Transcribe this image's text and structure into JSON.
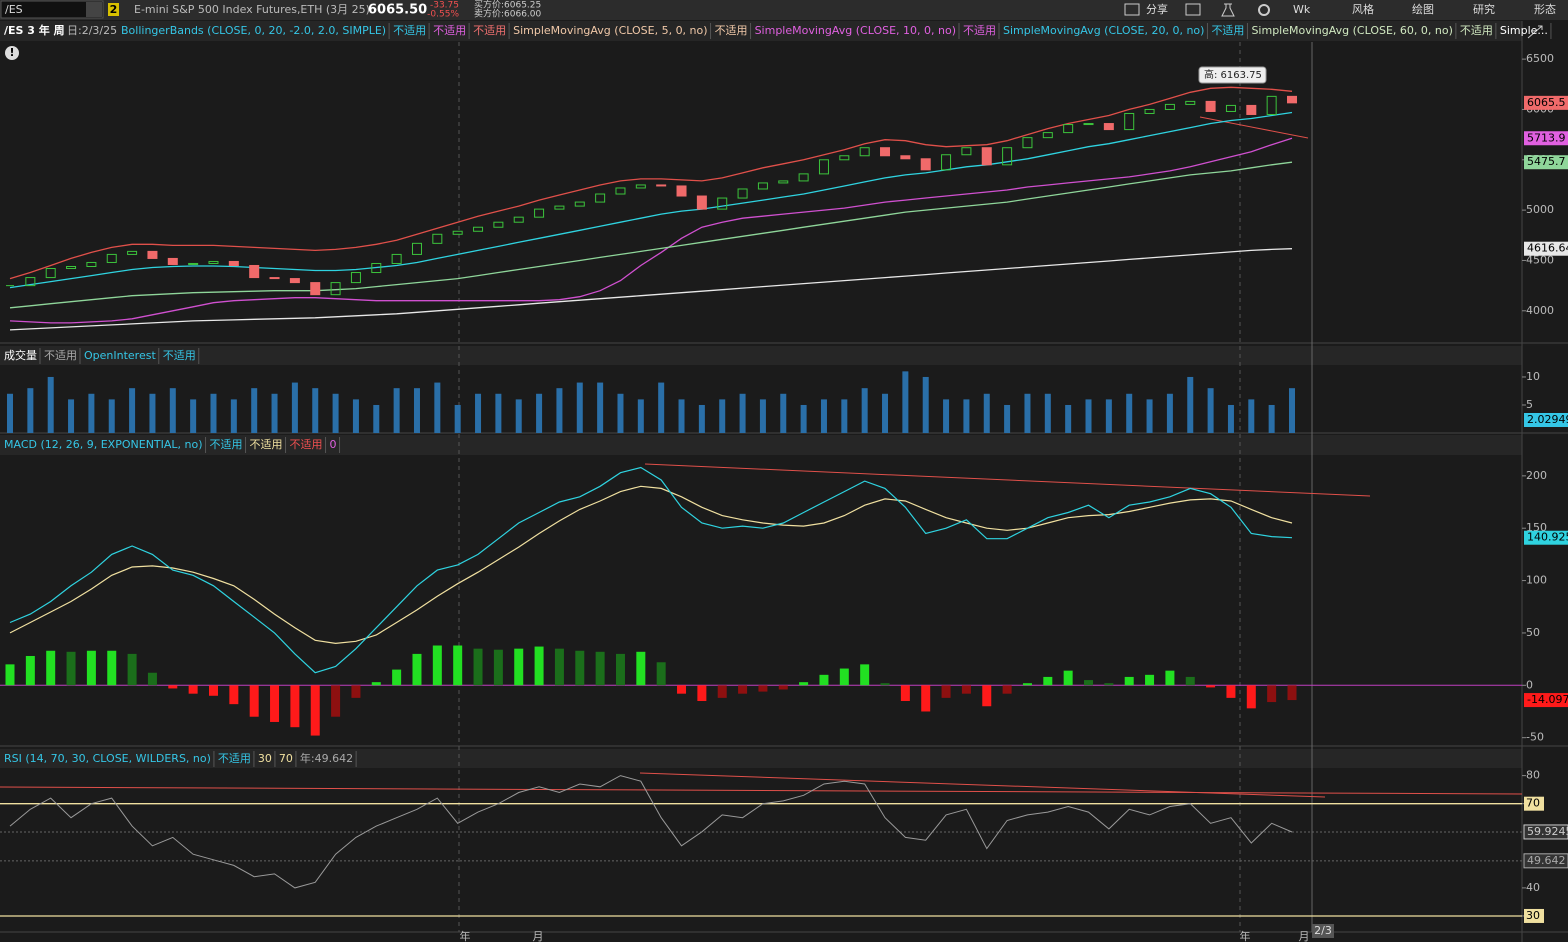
{
  "toolbar": {
    "symbol": "/ES",
    "link": "2",
    "description": "E-mini S&P 500 Index Futures,ETH (3月 25)",
    "last": "6065.50",
    "change": "-33.75",
    "change_pct": "-0.55%",
    "bid": "买方价:6065.25",
    "ask": "卖方价:6066.00",
    "buttons": [
      "分享",
      "Wk",
      "风格",
      "绘图",
      "研究",
      "形态"
    ]
  },
  "studies_bar": {
    "symbol_period": "/ES 3 年 周",
    "date": "日:2/3/25",
    "items": [
      {
        "text": "BollingerBands (CLOSE, 0, 20, -2.0, 2.0, SIMPLE)",
        "color": "#35c6e6"
      },
      {
        "text": "不适用",
        "color": "#35c6e6"
      },
      {
        "text": "不适用",
        "color": "#e060e0"
      },
      {
        "text": "不适用",
        "color": "#f07070"
      },
      {
        "text": "SimpleMovingAvg (CLOSE, 5, 0, no)",
        "color": "#f0c8a8"
      },
      {
        "text": "不适用",
        "color": "#f0c8a8"
      },
      {
        "text": "SimpleMovingAvg (CLOSE, 10, 0, no)",
        "color": "#e060e0"
      },
      {
        "text": "不适用",
        "color": "#e060e0"
      },
      {
        "text": "SimpleMovingAvg (CLOSE, 20, 0, no)",
        "color": "#35c6e6"
      },
      {
        "text": "不适用",
        "color": "#35c6e6"
      },
      {
        "text": "SimpleMovingAvg (CLOSE, 60, 0, no)",
        "color": "#d0e8c0"
      },
      {
        "text": "不适用",
        "color": "#d0e8c0"
      },
      {
        "text": "Simple...",
        "color": "#ffffff"
      }
    ]
  },
  "price_panel": {
    "type": "candlestick",
    "closes": [
      4250,
      4330,
      4420,
      4440,
      4480,
      4560,
      4590,
      4520,
      4460,
      4470,
      4490,
      4450,
      4330,
      4320,
      4280,
      4160,
      4280,
      4380,
      4470,
      4560,
      4670,
      4760,
      4790,
      4830,
      4880,
      4930,
      5010,
      5040,
      5080,
      5160,
      5220,
      5250,
      5240,
      5140,
      5010,
      5120,
      5210,
      5270,
      5290,
      5360,
      5500,
      5540,
      5620,
      5540,
      5510,
      5400,
      5550,
      5620,
      5450,
      5620,
      5720,
      5770,
      5850,
      5860,
      5800,
      5960,
      6000,
      6050,
      6080,
      5980,
      6040,
      5950,
      6130,
      6065.5
    ],
    "up_color": "#3cc43c",
    "down_color": "#f06a6a",
    "ylim": [
      3690,
      6670
    ],
    "yticks": [
      4000,
      4500,
      5000,
      5500,
      6000,
      6500
    ],
    "lines": [
      {
        "color": "#e0504a",
        "values": [
          4320,
          4380,
          4450,
          4520,
          4580,
          4630,
          4660,
          4660,
          4650,
          4650,
          4650,
          4640,
          4630,
          4620,
          4610,
          4600,
          4610,
          4630,
          4660,
          4700,
          4760,
          4820,
          4880,
          4940,
          4990,
          5040,
          5100,
          5150,
          5200,
          5250,
          5290,
          5310,
          5310,
          5300,
          5290,
          5320,
          5370,
          5420,
          5460,
          5500,
          5550,
          5600,
          5660,
          5700,
          5690,
          5650,
          5630,
          5640,
          5650,
          5690,
          5750,
          5810,
          5860,
          5900,
          5940,
          6000,
          6050,
          6110,
          6170,
          6210,
          6220,
          6210,
          6200,
          6180
        ]
      },
      {
        "color": "#2fd3e0",
        "values": [
          4230,
          4260,
          4290,
          4320,
          4350,
          4380,
          4410,
          4430,
          4440,
          4445,
          4445,
          4440,
          4430,
          4420,
          4410,
          4400,
          4400,
          4410,
          4430,
          4450,
          4480,
          4520,
          4560,
          4600,
          4640,
          4680,
          4720,
          4760,
          4800,
          4840,
          4880,
          4920,
          4960,
          4990,
          5010,
          5040,
          5070,
          5100,
          5130,
          5160,
          5200,
          5240,
          5280,
          5320,
          5350,
          5370,
          5400,
          5430,
          5450,
          5480,
          5510,
          5550,
          5590,
          5630,
          5660,
          5700,
          5740,
          5780,
          5820,
          5860,
          5890,
          5910,
          5940,
          5970
        ]
      },
      {
        "color": "#d050d0",
        "values": [
          3900,
          3890,
          3880,
          3880,
          3890,
          3900,
          3920,
          3960,
          4000,
          4040,
          4080,
          4100,
          4110,
          4120,
          4130,
          4130,
          4120,
          4110,
          4100,
          4100,
          4100,
          4100,
          4100,
          4100,
          4100,
          4100,
          4100,
          4110,
          4140,
          4200,
          4300,
          4450,
          4580,
          4720,
          4830,
          4880,
          4920,
          4940,
          4960,
          4980,
          5000,
          5020,
          5050,
          5080,
          5100,
          5120,
          5140,
          5160,
          5180,
          5200,
          5230,
          5250,
          5270,
          5290,
          5310,
          5330,
          5360,
          5390,
          5430,
          5480,
          5530,
          5580,
          5650,
          5713.9
        ]
      },
      {
        "color": "#8fd69a",
        "values": [
          4030,
          4050,
          4070,
          4090,
          4110,
          4130,
          4150,
          4160,
          4170,
          4180,
          4185,
          4190,
          4195,
          4200,
          4200,
          4200,
          4210,
          4220,
          4240,
          4260,
          4280,
          4300,
          4320,
          4350,
          4380,
          4410,
          4440,
          4470,
          4500,
          4530,
          4560,
          4590,
          4620,
          4650,
          4680,
          4710,
          4740,
          4770,
          4800,
          4830,
          4860,
          4890,
          4920,
          4950,
          4980,
          5000,
          5020,
          5040,
          5060,
          5080,
          5110,
          5140,
          5170,
          5200,
          5230,
          5260,
          5290,
          5320,
          5350,
          5370,
          5390,
          5420,
          5450,
          5475.7
        ]
      },
      {
        "color": "#e8e8e8",
        "values": [
          3810,
          3820,
          3830,
          3840,
          3850,
          3860,
          3870,
          3880,
          3890,
          3900,
          3905,
          3910,
          3915,
          3920,
          3925,
          3930,
          3940,
          3950,
          3960,
          3970,
          3985,
          4000,
          4015,
          4030,
          4045,
          4060,
          4075,
          4090,
          4105,
          4120,
          4135,
          4150,
          4165,
          4180,
          4195,
          4210,
          4225,
          4240,
          4255,
          4270,
          4285,
          4300,
          4315,
          4330,
          4345,
          4360,
          4375,
          4390,
          4405,
          4420,
          4435,
          4450,
          4465,
          4480,
          4495,
          4510,
          4525,
          4540,
          4555,
          4570,
          4585,
          4600,
          4610,
          4616.64
        ]
      }
    ],
    "price_labels": [
      {
        "value": 6065.5,
        "color": "#f06a6a"
      },
      {
        "value": 5713.9,
        "color": "#e060e0"
      },
      {
        "value": 5475.7,
        "color": "#8fd69a"
      },
      {
        "value": 4616.64,
        "color": "#e8e8e8"
      }
    ],
    "high_tooltip": "高: 6163.75"
  },
  "volume_panel": {
    "type": "bar",
    "header": [
      {
        "text": "成交量",
        "color": "#ffffff"
      },
      {
        "text": "不适用",
        "color": "#aaaaaa"
      },
      {
        "text": "OpenInterest",
        "color": "#35c6e6"
      },
      {
        "text": "不适用",
        "color": "#35c6e6"
      }
    ],
    "values": [
      7,
      8,
      10,
      6,
      7,
      6,
      8,
      7,
      8,
      6,
      7,
      6,
      8,
      7,
      9,
      8,
      7,
      6,
      5,
      8,
      8,
      9,
      5,
      7,
      7,
      6,
      7,
      8,
      9,
      9,
      7,
      6,
      9,
      6,
      5,
      6,
      7,
      6,
      7,
      5,
      6,
      6,
      8,
      7,
      11,
      10,
      6,
      6,
      7,
      5,
      7,
      7,
      5,
      6,
      6,
      7,
      6,
      7,
      10,
      8,
      5,
      6,
      5,
      8
    ],
    "color": "#2a6fa8",
    "ylim": [
      0,
      11.6
    ],
    "yticks": [
      5,
      10
    ],
    "last_label": {
      "value": 2.02949,
      "color": "#35c6e6"
    }
  },
  "macd_panel": {
    "type": "macd",
    "header": [
      {
        "text": "MACD (12, 26, 9, EXPONENTIAL, no)",
        "color": "#35c6e6"
      },
      {
        "text": "不适用",
        "color": "#35c6e6"
      },
      {
        "text": "不适用",
        "color": "#f0e0a0"
      },
      {
        "text": "不适用",
        "color": "#f05050"
      },
      {
        "text": "0",
        "color": "#e060e0"
      }
    ],
    "macd": {
      "color": "#2fd3e0",
      "values": [
        60,
        68,
        80,
        95,
        108,
        125,
        133,
        125,
        110,
        105,
        95,
        80,
        65,
        50,
        30,
        12,
        18,
        35,
        55,
        75,
        95,
        110,
        115,
        125,
        140,
        155,
        165,
        175,
        180,
        190,
        203,
        208,
        196,
        170,
        155,
        150,
        152,
        150,
        155,
        165,
        175,
        185,
        195,
        188,
        170,
        145,
        150,
        158,
        140,
        140,
        150,
        160,
        165,
        172,
        160,
        172,
        175,
        180,
        188,
        183,
        170,
        145,
        142,
        140.925
      ]
    },
    "signal": {
      "color": "#f0e0a0",
      "values": [
        50,
        60,
        70,
        80,
        92,
        105,
        113,
        114,
        112,
        108,
        102,
        95,
        82,
        68,
        55,
        43,
        40,
        42,
        48,
        60,
        72,
        85,
        97,
        108,
        120,
        132,
        145,
        157,
        168,
        176,
        185,
        190,
        188,
        180,
        170,
        162,
        158,
        155,
        153,
        152,
        155,
        162,
        172,
        178,
        176,
        168,
        160,
        155,
        150,
        148,
        150,
        155,
        160,
        162,
        163,
        166,
        170,
        174,
        177,
        178,
        176,
        168,
        160,
        155
      ]
    },
    "histogram": [
      20,
      28,
      33,
      32,
      33,
      33,
      30,
      12,
      -3,
      -8,
      -10,
      -18,
      -30,
      -35,
      -40,
      -48,
      -30,
      -12,
      3,
      15,
      30,
      38,
      38,
      35,
      34,
      35,
      37,
      35,
      33,
      32,
      30,
      32,
      22,
      -8,
      -15,
      -12,
      -8,
      -6,
      -4,
      3,
      10,
      16,
      20,
      2,
      -15,
      -25,
      -12,
      -8,
      -20,
      -8,
      2,
      8,
      14,
      5,
      2,
      8,
      10,
      14,
      8,
      -2,
      -12,
      -22,
      -16,
      -14.097
    ],
    "ylim": [
      -57,
      218
    ],
    "yticks": [
      -50,
      0,
      50,
      100,
      150,
      200
    ]
  },
  "rsi_panel": {
    "type": "line",
    "header": [
      {
        "text": "RSI (14, 70, 30, CLOSE, WILDERS, no)",
        "color": "#35c6e6"
      },
      {
        "text": "不适用",
        "color": "#35c6e6"
      },
      {
        "value": 30,
        "color": "#f0e0a0"
      },
      {
        "value": 70,
        "color": "#f0e0a0"
      },
      {
        "text": "年:49.642",
        "color": "#aaaaaa"
      }
    ],
    "values": [
      62,
      68,
      72,
      65,
      70,
      72,
      62,
      55,
      58,
      52,
      50,
      48,
      44,
      45,
      40,
      42,
      52,
      58,
      62,
      65,
      68,
      72,
      63,
      67,
      70,
      74,
      76,
      74,
      77,
      76,
      80,
      78,
      65,
      55,
      60,
      66,
      65,
      70,
      71,
      73,
      77,
      78,
      77,
      65,
      58,
      57,
      66,
      68,
      54,
      64,
      66,
      67,
      69,
      67,
      61,
      68,
      66,
      69,
      70,
      63,
      65,
      56,
      63,
      59.9245
    ],
    "color": "#9a9a9a",
    "ylim": [
      25,
      82
    ],
    "yticks": [
      30,
      40,
      70,
      80
    ],
    "labels": [
      {
        "value": 59.9245,
        "color": "#cccccc"
      },
      {
        "value": 49.642,
        "color": "#aaaaaa"
      }
    ]
  },
  "time_axis": {
    "labels": [
      "年",
      "月",
      "年",
      "月"
    ],
    "current": "2/3"
  }
}
